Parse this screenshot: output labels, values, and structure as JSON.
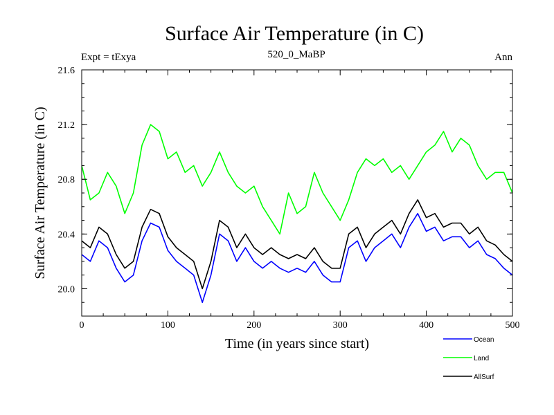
{
  "chart_data": {
    "type": "line",
    "title": "Surface Air Temperature (in C)",
    "subtitle_left": "Expt = tExya",
    "subtitle_center": "520_0_MaBP",
    "subtitle_right": "Ann",
    "xlabel": "Time (in years since start)",
    "ylabel": "Surface Air Temperature (in C)",
    "xlim": [
      0,
      500
    ],
    "ylim": [
      19.8,
      21.6
    ],
    "xticks": [
      0,
      100,
      200,
      300,
      400,
      500
    ],
    "xtick_labels": [
      "0",
      "100",
      "200",
      "300",
      "400",
      "500"
    ],
    "yticks": [
      20.0,
      20.4,
      20.8,
      21.2,
      21.6
    ],
    "ytick_labels": [
      "20.0",
      "20.4",
      "20.8",
      "21.2",
      "21.6"
    ],
    "grid": false,
    "legend_position": "bottom-right, below plot",
    "series": [
      {
        "name": "Ocean",
        "color": "#0000ff",
        "x": [
          0,
          10,
          20,
          30,
          40,
          50,
          60,
          70,
          80,
          90,
          100,
          110,
          120,
          130,
          140,
          150,
          160,
          170,
          180,
          190,
          200,
          210,
          220,
          230,
          240,
          250,
          260,
          270,
          280,
          290,
          300,
          310,
          320,
          330,
          340,
          350,
          360,
          370,
          380,
          390,
          400,
          410,
          420,
          430,
          440,
          450,
          460,
          470,
          480,
          490,
          500
        ],
        "values": [
          20.25,
          20.2,
          20.35,
          20.3,
          20.15,
          20.05,
          20.1,
          20.35,
          20.48,
          20.45,
          20.28,
          20.2,
          20.15,
          20.1,
          19.9,
          20.1,
          20.4,
          20.35,
          20.2,
          20.3,
          20.2,
          20.15,
          20.2,
          20.15,
          20.12,
          20.15,
          20.12,
          20.2,
          20.1,
          20.05,
          20.05,
          20.3,
          20.35,
          20.2,
          20.3,
          20.35,
          20.4,
          20.3,
          20.45,
          20.55,
          20.42,
          20.45,
          20.35,
          20.38,
          20.38,
          20.3,
          20.35,
          20.25,
          20.22,
          20.15,
          20.1
        ]
      },
      {
        "name": "Land",
        "color": "#00ff00",
        "x": [
          0,
          10,
          20,
          30,
          40,
          50,
          60,
          70,
          80,
          90,
          100,
          110,
          120,
          130,
          140,
          150,
          160,
          170,
          180,
          190,
          200,
          210,
          220,
          230,
          240,
          250,
          260,
          270,
          280,
          290,
          300,
          310,
          320,
          330,
          340,
          350,
          360,
          370,
          380,
          390,
          400,
          410,
          420,
          430,
          440,
          450,
          460,
          470,
          480,
          490,
          500
        ],
        "values": [
          20.9,
          20.65,
          20.7,
          20.85,
          20.75,
          20.55,
          20.7,
          21.05,
          21.2,
          21.15,
          20.95,
          21.0,
          20.85,
          20.9,
          20.75,
          20.85,
          21.0,
          20.85,
          20.75,
          20.7,
          20.75,
          20.6,
          20.5,
          20.4,
          20.7,
          20.55,
          20.6,
          20.85,
          20.7,
          20.6,
          20.5,
          20.65,
          20.85,
          20.95,
          20.9,
          20.95,
          20.85,
          20.9,
          20.8,
          20.9,
          21.0,
          21.05,
          21.15,
          21.0,
          21.1,
          21.05,
          20.9,
          20.8,
          20.85,
          20.85,
          20.7
        ]
      },
      {
        "name": "AllSurf",
        "color": "#000000",
        "x": [
          0,
          10,
          20,
          30,
          40,
          50,
          60,
          70,
          80,
          90,
          100,
          110,
          120,
          130,
          140,
          150,
          160,
          170,
          180,
          190,
          200,
          210,
          220,
          230,
          240,
          250,
          260,
          270,
          280,
          290,
          300,
          310,
          320,
          330,
          340,
          350,
          360,
          370,
          380,
          390,
          400,
          410,
          420,
          430,
          440,
          450,
          460,
          470,
          480,
          490,
          500
        ],
        "values": [
          20.35,
          20.3,
          20.45,
          20.4,
          20.25,
          20.15,
          20.2,
          20.45,
          20.58,
          20.55,
          20.38,
          20.3,
          20.25,
          20.2,
          20.0,
          20.2,
          20.5,
          20.45,
          20.3,
          20.4,
          20.3,
          20.25,
          20.3,
          20.25,
          20.22,
          20.25,
          20.22,
          20.3,
          20.2,
          20.15,
          20.15,
          20.4,
          20.45,
          20.3,
          20.4,
          20.45,
          20.5,
          20.4,
          20.55,
          20.65,
          20.52,
          20.55,
          20.45,
          20.48,
          20.48,
          20.4,
          20.45,
          20.35,
          20.32,
          20.25,
          20.2
        ]
      }
    ]
  }
}
